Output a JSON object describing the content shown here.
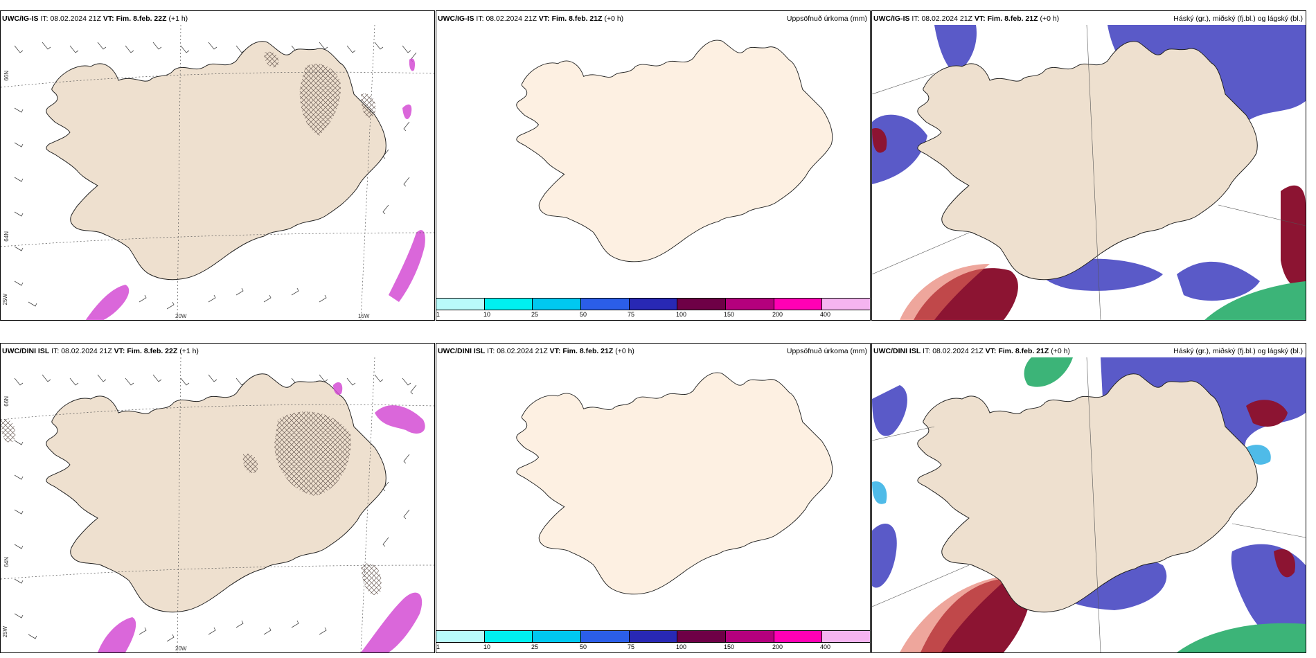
{
  "rows": [
    {
      "wind": {
        "model": "UWC/IG-IS",
        "it_label": "IT:",
        "it": "08.02.2024 21Z",
        "vt_label": "VT:",
        "vt": "Fim. 8.feb. 22Z",
        "lead": "(+1 h)"
      },
      "precip": {
        "model": "UWC/IG-IS",
        "it_label": "IT:",
        "it": "08.02.2024 21Z",
        "vt_label": "VT:",
        "vt": "Fim. 8.feb. 21Z",
        "lead": "(+0 h)",
        "title": "Uppsöfnuð úrkoma (mm)"
      },
      "cloud": {
        "model": "UWC/IG-IS",
        "it_label": "IT:",
        "it": "08.02.2024 21Z",
        "vt_label": "VT:",
        "vt": "Fim. 8.feb. 21Z",
        "lead": "(+0 h)",
        "title": "Háský (gr.), miðský (fj.bl.) og lágský (bl.)"
      }
    },
    {
      "wind": {
        "model": "UWC/DINI ISL",
        "it_label": "IT:",
        "it": "08.02.2024 21Z",
        "vt_label": "VT:",
        "vt": "Fim. 8.feb. 22Z",
        "lead": "(+1 h)"
      },
      "precip": {
        "model": "UWC/DINI ISL",
        "it_label": "IT:",
        "it": "08.02.2024 21Z",
        "vt_label": "VT:",
        "vt": "Fim. 8.feb. 21Z",
        "lead": "(+0 h)",
        "title": "Uppsöfnuð úrkoma (mm)"
      },
      "cloud": {
        "model": "UWC/DINI ISL",
        "it_label": "IT:",
        "it": "08.02.2024 21Z",
        "vt_label": "VT:",
        "vt": "Fim. 8.feb. 21Z",
        "lead": "(+0 h)",
        "title": "Háský (gr.), miðský (fj.bl.) og lágský (bl.)"
      }
    }
  ],
  "grid_labels": {
    "lat_66": "66N",
    "lat_64": "64N",
    "lon_25": "25W",
    "lon_20": "20W",
    "lon_15": "15W"
  },
  "colorbar": {
    "ticks": [
      "1",
      "10",
      "25",
      "50",
      "75",
      "100",
      "150",
      "200",
      "400"
    ],
    "colors": [
      "#b9fbfb",
      "#00f0f0",
      "#00c8f0",
      "#2b5ee8",
      "#2828b4",
      "#6e0046",
      "#b4007d",
      "#ff00b4",
      "#f5b4f0"
    ]
  },
  "colors": {
    "land": "#eee0cf",
    "land_precip": "#fdf0e2",
    "snow_hatch": "#6b5c55",
    "precip_pink": "#d44cd4",
    "cloud_high": "#5a5ac8",
    "cloud_mid": "#3cb4e6",
    "cloud_low_red": "#8c1432",
    "cloud_green": "#3cb478"
  }
}
